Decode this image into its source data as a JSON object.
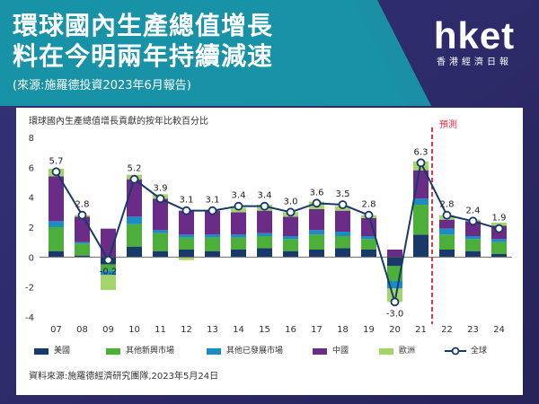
{
  "header": {
    "headline_line1": "環球國內生產總值增長",
    "headline_line2": "料在今明兩年持續減速",
    "subtitle": "(來源:施羅德投資2023年6月報告)"
  },
  "logo": {
    "text": "hket",
    "subtext": "香港經濟日報"
  },
  "chart_data": {
    "type": "bar",
    "title": "環球國內生產總值增長貢獻的按年比較百分比",
    "forecast_label": "預測",
    "source": "資料來源:施羅德經濟研究團隊,2023年5月24日",
    "categories": [
      "07",
      "08",
      "09",
      "10",
      "11",
      "12",
      "13",
      "14",
      "15",
      "16",
      "17",
      "18",
      "19",
      "20",
      "21",
      "22",
      "23",
      "24"
    ],
    "ylim": [
      -4,
      8
    ],
    "yticks": [
      -4,
      -2,
      0,
      2,
      4,
      6,
      8
    ],
    "grid": false,
    "legend_position": "bottom",
    "forecast_start": "22",
    "series": [
      {
        "name": "美國",
        "color": "#173a6b",
        "values": [
          0.4,
          0.1,
          -0.5,
          0.7,
          0.4,
          0.5,
          0.4,
          0.5,
          0.6,
          0.4,
          0.5,
          0.6,
          0.5,
          -0.6,
          1.5,
          0.5,
          0.4,
          0.2
        ]
      },
      {
        "name": "其他新興市場",
        "color": "#4caf3a",
        "values": [
          1.6,
          0.8,
          -0.4,
          1.5,
          1.2,
          0.8,
          0.9,
          0.8,
          0.8,
          0.8,
          1.0,
          0.8,
          0.7,
          -1.0,
          2.0,
          1.0,
          0.8,
          0.8
        ]
      },
      {
        "name": "其他已發展市場",
        "color": "#1b8cc4",
        "values": [
          0.4,
          0.1,
          -0.3,
          0.5,
          0.2,
          0.2,
          0.2,
          0.2,
          0.2,
          0.2,
          0.3,
          0.3,
          0.2,
          -0.5,
          0.4,
          0.4,
          0.2,
          0.2
        ]
      },
      {
        "name": "中國",
        "color": "#6a2c87",
        "values": [
          3.0,
          1.7,
          1.9,
          2.5,
          2.1,
          1.6,
          1.6,
          1.5,
          1.5,
          1.3,
          1.4,
          1.4,
          1.2,
          0.5,
          1.9,
          0.6,
          1.0,
          0.9
        ]
      },
      {
        "name": "歐洲",
        "color": "#a5d46a",
        "values": [
          0.5,
          0.1,
          -1.0,
          0.3,
          0.3,
          -0.2,
          0.0,
          0.3,
          0.4,
          0.3,
          0.5,
          0.3,
          0.2,
          -0.9,
          0.6,
          0.3,
          0.1,
          0.2
        ]
      },
      {
        "name": "全球",
        "type": "line",
        "color": "#173a6b",
        "values": [
          5.7,
          2.8,
          -0.2,
          5.2,
          3.9,
          3.1,
          3.1,
          3.4,
          3.4,
          3.0,
          3.6,
          3.5,
          2.8,
          -3.0,
          6.3,
          2.8,
          2.4,
          1.9
        ],
        "labels": [
          "5.7",
          "2.8",
          "-0.2",
          "5.2",
          "3.9",
          "3.1",
          "3.1",
          "3.4",
          "3.4",
          "3.0",
          "3.6",
          "3.5",
          "2.8",
          "-3.0",
          "6.3",
          "2.8",
          "2.4",
          "1.9"
        ]
      }
    ],
    "colors": {
      "forecast_line": "#e8334a",
      "forecast_text": "#e8334a",
      "axis": "#333333"
    }
  }
}
